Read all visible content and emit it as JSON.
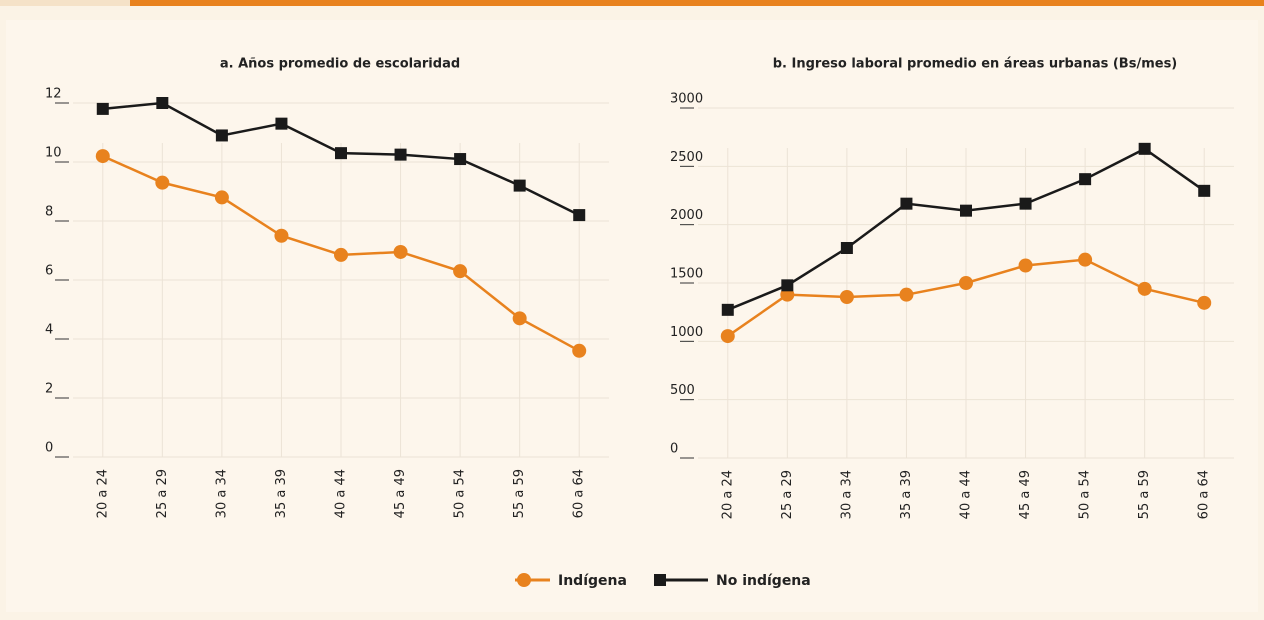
{
  "chart_data": [
    {
      "type": "line",
      "title": "a. Años promedio de escolaridad",
      "categories": [
        "20 a 24",
        "25 a 29",
        "30 a 34",
        "35 a 39",
        "40 a 44",
        "45 a 49",
        "50 a 54",
        "55 a 59",
        "60 a 64"
      ],
      "series": [
        {
          "name": "Indígena",
          "color": "#e8821e",
          "values": [
            10.2,
            9.3,
            8.8,
            7.5,
            6.85,
            6.95,
            6.3,
            4.7,
            3.6
          ]
        },
        {
          "name": "No indígena",
          "color": "#1a1a1a",
          "values": [
            11.8,
            12.0,
            10.9,
            11.3,
            10.3,
            10.25,
            10.1,
            9.2,
            8.2
          ]
        }
      ],
      "ylim": [
        0,
        12
      ],
      "yticks": [
        0,
        2,
        4,
        6,
        8,
        10,
        12
      ],
      "grid": true
    },
    {
      "type": "line",
      "title": "b. Ingreso laboral promedio en áreas urbanas (Bs/mes)",
      "categories": [
        "20 a 24",
        "25 a 29",
        "30 a 34",
        "35 a 39",
        "40 a 44",
        "45 a 49",
        "50 a 54",
        "55 a 59",
        "60 a 64"
      ],
      "series": [
        {
          "name": "Indígena",
          "color": "#e8821e",
          "values": [
            1045,
            1400,
            1380,
            1400,
            1500,
            1650,
            1700,
            1450,
            1330
          ]
        },
        {
          "name": "No indígena",
          "color": "#1a1a1a",
          "values": [
            1270,
            1480,
            1800,
            2180,
            2120,
            2180,
            2390,
            2650,
            2290
          ]
        }
      ],
      "ylim": [
        0,
        3000
      ],
      "yticks": [
        0,
        500,
        1000,
        1500,
        2000,
        2500,
        3000
      ],
      "grid": true
    }
  ]
}
